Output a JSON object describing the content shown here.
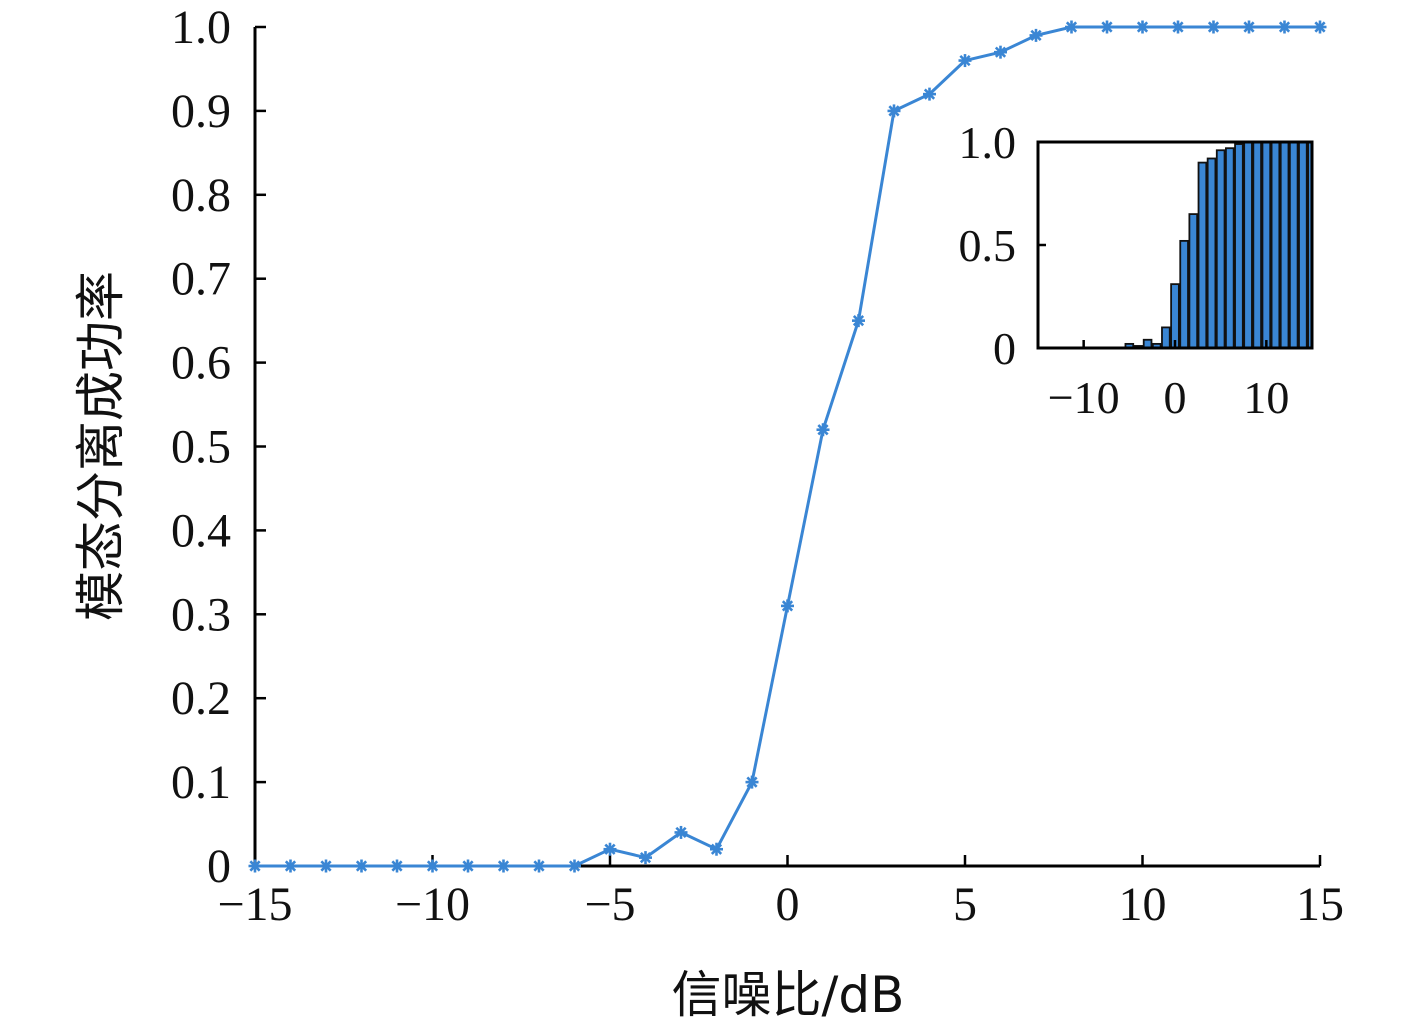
{
  "chart_data": [
    {
      "type": "line",
      "xlabel": "信噪比/dB",
      "ylabel": "模态分离成功率",
      "xlim": [
        -15,
        15
      ],
      "ylim": [
        0,
        1
      ],
      "x_ticks": [
        "−15",
        "−10",
        "−5",
        "0",
        "5",
        "10",
        "15"
      ],
      "y_ticks": [
        "0",
        "0.1",
        "0.2",
        "0.3",
        "0.4",
        "0.5",
        "0.6",
        "0.7",
        "0.8",
        "0.9",
        "1.0"
      ],
      "grid": false,
      "marker": "asterisk",
      "color": "#3a86d4",
      "x": [
        -15,
        -14,
        -13,
        -12,
        -11,
        -10,
        -9,
        -8,
        -7,
        -6,
        -5,
        -4,
        -3,
        -2,
        -1,
        0,
        1,
        2,
        3,
        4,
        5,
        6,
        7,
        8,
        9,
        10,
        11,
        12,
        13,
        14,
        15
      ],
      "y": [
        0,
        0,
        0,
        0,
        0,
        0,
        0,
        0,
        0,
        0,
        0.02,
        0.01,
        0.04,
        0.02,
        0.1,
        0.31,
        0.52,
        0.65,
        0.9,
        0.92,
        0.96,
        0.97,
        0.99,
        1.0,
        1.0,
        1.0,
        1.0,
        1.0,
        1.0,
        1.0,
        1.0
      ]
    },
    {
      "type": "bar",
      "inset": true,
      "xlim": [
        -15,
        15
      ],
      "ylim": [
        0,
        1
      ],
      "x_ticks": [
        "−10",
        "0",
        "10"
      ],
      "y_ticks": [
        "0",
        "0.5",
        "1.0"
      ],
      "color": "#3a86d4",
      "x": [
        -15,
        -14,
        -13,
        -12,
        -11,
        -10,
        -9,
        -8,
        -7,
        -6,
        -5,
        -4,
        -3,
        -2,
        -1,
        0,
        1,
        2,
        3,
        4,
        5,
        6,
        7,
        8,
        9,
        10,
        11,
        12,
        13,
        14,
        15
      ],
      "values": [
        0,
        0,
        0,
        0,
        0,
        0,
        0,
        0,
        0,
        0,
        0.02,
        0.01,
        0.04,
        0.02,
        0.1,
        0.31,
        0.52,
        0.65,
        0.9,
        0.92,
        0.96,
        0.97,
        0.99,
        1.0,
        1.0,
        1.0,
        1.0,
        1.0,
        1.0,
        1.0,
        1.0
      ]
    }
  ]
}
